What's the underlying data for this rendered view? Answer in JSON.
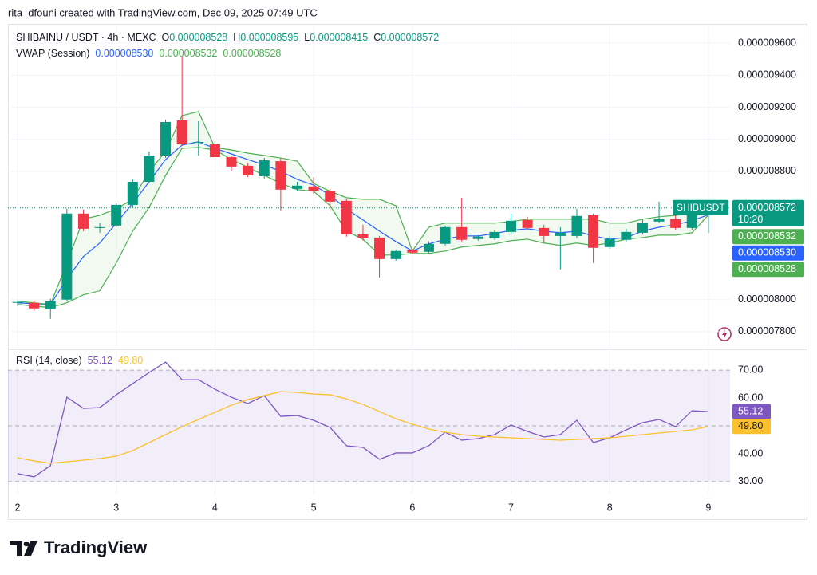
{
  "credit": "rita_dfouni created with TradingView.com, Dec 09, 2025 07:49 UTC",
  "brand": "TradingView",
  "chart_data": [
    {
      "type": "candlestick",
      "title": "SHIBAINU / USDT · 4h · MEXC",
      "ohlc_labels": [
        "O",
        "H",
        "L",
        "C"
      ],
      "symbol_tag": "SHIBUSDT",
      "countdown": "10:20",
      "up_color": "#089981",
      "down_color": "#f23645",
      "x": [
        2,
        2.1667,
        2.3333,
        2.5,
        2.6667,
        2.8333,
        3,
        3.1667,
        3.3333,
        3.5,
        3.6667,
        3.8333,
        4,
        4.1667,
        4.3333,
        4.5,
        4.6667,
        4.8333,
        5,
        5.1667,
        5.3333,
        5.5,
        5.6667,
        5.8333,
        6,
        6.1667,
        6.3333,
        6.5,
        6.6667,
        6.8333,
        7,
        7.1667,
        7.3333,
        7.5,
        7.6667,
        7.8333,
        8,
        8.1667,
        8.3333,
        8.5,
        8.6667,
        8.8333,
        9
      ],
      "xlim": [
        1.903,
        9.219
      ],
      "xticks": [
        2,
        3,
        4,
        5,
        6,
        7,
        8,
        9
      ],
      "ylim": [
        7.7e-06,
        9.72e-06
      ],
      "yticks": [
        {
          "value": 9.6e-06,
          "label": "0.000009600"
        },
        {
          "value": 9.4e-06,
          "label": "0.000009400"
        },
        {
          "value": 9.2e-06,
          "label": "0.000009200"
        },
        {
          "value": 9e-06,
          "label": "0.000009000"
        },
        {
          "value": 8.8e-06,
          "label": "0.000008800"
        },
        {
          "value": 8e-06,
          "label": "0.000008000"
        },
        {
          "value": 7.8e-06,
          "label": "0.000007800"
        }
      ],
      "grid": true,
      "open": [
        7.98e-06,
        7.98e-06,
        7.94e-06,
        8e-06,
        8.537e-06,
        8.447e-06,
        8.462e-06,
        8.591e-06,
        8.735e-06,
        8.899e-06,
        9.118e-06,
        8.979e-06,
        8.969e-06,
        8.889e-06,
        8.835e-06,
        8.77e-06,
        8.864e-06,
        8.691e-06,
        8.706e-06,
        8.676e-06,
        8.616e-06,
        8.407e-06,
        8.387e-06,
        8.253e-06,
        8.308e-06,
        8.298e-06,
        8.348e-06,
        8.452e-06,
        8.378e-06,
        8.383e-06,
        8.422e-06,
        8.497e-06,
        8.447e-06,
        8.397e-06,
        8.397e-06,
        8.527e-06,
        8.328e-06,
        8.373e-06,
        8.417e-06,
        8.487e-06,
        8.502e-06,
        8.447e-06,
        8.528e-06
      ],
      "high": [
        7.995e-06,
        7.995e-06,
        8.005e-06,
        8.567e-06,
        8.562e-06,
        8.477e-06,
        8.601e-06,
        8.75e-06,
        8.924e-06,
        9.123e-06,
        9.511e-06,
        9.113e-06,
        8.999e-06,
        8.899e-06,
        8.85e-06,
        8.884e-06,
        8.884e-06,
        8.735e-06,
        8.765e-06,
        8.691e-06,
        8.626e-06,
        8.467e-06,
        8.397e-06,
        8.313e-06,
        8.318e-06,
        8.363e-06,
        8.462e-06,
        8.636e-06,
        8.403e-06,
        8.432e-06,
        8.537e-06,
        8.517e-06,
        8.467e-06,
        8.452e-06,
        8.567e-06,
        8.537e-06,
        8.397e-06,
        8.442e-06,
        8.502e-06,
        8.611e-06,
        8.527e-06,
        8.606e-06,
        8.595e-06
      ],
      "low": [
        7.96e-06,
        7.93e-06,
        7.88e-06,
        7.99e-06,
        8.427e-06,
        8.417e-06,
        8.452e-06,
        8.576e-06,
        8.725e-06,
        8.884e-06,
        8.959e-06,
        8.899e-06,
        8.879e-06,
        8.8e-06,
        8.765e-06,
        8.755e-06,
        8.557e-06,
        8.676e-06,
        8.661e-06,
        8.552e-06,
        8.393e-06,
        8.368e-06,
        8.139e-06,
        8.243e-06,
        8.283e-06,
        8.288e-06,
        8.338e-06,
        8.363e-06,
        8.368e-06,
        8.373e-06,
        8.412e-06,
        8.437e-06,
        8.353e-06,
        8.189e-06,
        8.383e-06,
        8.229e-06,
        8.318e-06,
        8.363e-06,
        8.407e-06,
        8.477e-06,
        8.437e-06,
        8.437e-06,
        8.415e-06
      ],
      "close": [
        7.985e-06,
        7.945e-06,
        7.99e-06,
        8.537e-06,
        8.442e-06,
        8.452e-06,
        8.591e-06,
        8.735e-06,
        8.899e-06,
        9.108e-06,
        8.969e-06,
        8.984e-06,
        8.889e-06,
        8.83e-06,
        8.775e-06,
        8.869e-06,
        8.686e-06,
        8.711e-06,
        8.676e-06,
        8.611e-06,
        8.407e-06,
        8.387e-06,
        8.253e-06,
        8.303e-06,
        8.293e-06,
        8.348e-06,
        8.452e-06,
        8.373e-06,
        8.393e-06,
        8.422e-06,
        8.492e-06,
        8.447e-06,
        8.397e-06,
        8.417e-06,
        8.522e-06,
        8.323e-06,
        8.378e-06,
        8.422e-06,
        8.477e-06,
        8.502e-06,
        8.447e-06,
        8.557e-06,
        8.572e-06
      ],
      "overlay": {
        "name": "VWAP (Session)",
        "fill_color": "rgba(76,175,80,0.08)",
        "series": [
          {
            "color": "#2962ff",
            "values": [
              7.98e-06,
              7.975e-06,
              7.97e-06,
              8.129e-06,
              8.268e-06,
              8.353e-06,
              8.477e-06,
              8.601e-06,
              8.735e-06,
              8.874e-06,
              8.964e-06,
              8.984e-06,
              8.944e-06,
              8.909e-06,
              8.874e-06,
              8.84e-06,
              8.8e-06,
              8.75e-06,
              8.715e-06,
              8.651e-06,
              8.566e-06,
              8.497e-06,
              8.427e-06,
              8.362e-06,
              8.303e-06,
              8.348e-06,
              8.377e-06,
              8.397e-06,
              8.397e-06,
              8.412e-06,
              8.432e-06,
              8.442e-06,
              8.427e-06,
              8.417e-06,
              8.427e-06,
              8.397e-06,
              8.377e-06,
              8.387e-06,
              8.427e-06,
              8.452e-06,
              8.467e-06,
              8.492e-06,
              8.53e-06
            ],
            "value_labels": [
              null,
              null,
              null,
              null,
              null,
              null,
              null,
              null,
              null,
              null,
              null,
              null,
              null,
              null,
              null,
              null,
              null,
              null,
              null,
              null,
              null,
              null,
              null,
              null,
              null,
              null,
              null,
              null,
              null,
              null,
              null,
              null,
              null,
              null,
              null,
              null,
              null,
              null,
              null,
              null,
              null,
              null,
              "0.000008530"
            ]
          },
          {
            "color": "#4caf50",
            "values": [
              7.99e-06,
              7.98e-06,
              7.97e-06,
              8.228e-06,
              8.502e-06,
              8.526e-06,
              8.566e-06,
              8.626e-06,
              8.8e-06,
              8.924e-06,
              9.148e-06,
              9.173e-06,
              8.949e-06,
              8.934e-06,
              8.914e-06,
              8.899e-06,
              8.884e-06,
              8.864e-06,
              8.725e-06,
              8.676e-06,
              8.636e-06,
              8.626e-06,
              8.626e-06,
              8.586e-06,
              8.303e-06,
              8.452e-06,
              8.477e-06,
              8.477e-06,
              8.477e-06,
              8.477e-06,
              8.487e-06,
              8.502e-06,
              8.502e-06,
              8.502e-06,
              8.502e-06,
              8.502e-06,
              8.477e-06,
              8.477e-06,
              8.502e-06,
              8.517e-06,
              8.526e-06,
              8.537e-06,
              8.532e-06
            ],
            "value_labels": [
              null,
              null,
              null,
              null,
              null,
              null,
              null,
              null,
              null,
              null,
              null,
              null,
              null,
              null,
              null,
              null,
              null,
              null,
              null,
              null,
              null,
              null,
              null,
              null,
              null,
              null,
              null,
              null,
              null,
              null,
              null,
              null,
              null,
              null,
              null,
              null,
              null,
              null,
              null,
              null,
              null,
              null,
              "0.000008532"
            ]
          },
          {
            "color": "#4caf50",
            "values": [
              7.97e-06,
              7.96e-06,
              7.95e-06,
              7.98e-06,
              8.03e-06,
              8.055e-06,
              8.228e-06,
              8.427e-06,
              8.576e-06,
              8.775e-06,
              8.944e-06,
              8.949e-06,
              8.934e-06,
              8.874e-06,
              8.825e-06,
              8.775e-06,
              8.725e-06,
              8.686e-06,
              8.676e-06,
              8.586e-06,
              8.427e-06,
              8.377e-06,
              8.278e-06,
              8.278e-06,
              8.288e-06,
              8.288e-06,
              8.303e-06,
              8.328e-06,
              8.338e-06,
              8.348e-06,
              8.368e-06,
              8.377e-06,
              8.353e-06,
              8.338e-06,
              8.353e-06,
              8.338e-06,
              8.353e-06,
              8.377e-06,
              8.387e-06,
              8.402e-06,
              8.402e-06,
              8.417e-06,
              8.528e-06
            ],
            "value_labels": [
              null,
              null,
              null,
              null,
              null,
              null,
              null,
              null,
              null,
              null,
              null,
              null,
              null,
              null,
              null,
              null,
              null,
              null,
              null,
              null,
              null,
              null,
              null,
              null,
              null,
              null,
              null,
              null,
              null,
              null,
              null,
              null,
              null,
              null,
              null,
              null,
              null,
              null,
              null,
              null,
              null,
              null,
              "0.000008528"
            ]
          }
        ]
      }
    },
    {
      "type": "line",
      "title": "RSI (14, close)",
      "ylim": [
        25.4,
        76.9
      ],
      "yticks": [
        {
          "value": 70,
          "label": "70.00"
        },
        {
          "value": 60,
          "label": "60.00"
        },
        {
          "value": 40,
          "label": "40.00"
        },
        {
          "value": 30,
          "label": "30.00"
        }
      ],
      "band": [
        30,
        70
      ],
      "band_color": "rgba(126,87,194,0.1)",
      "levels": [
        70,
        50,
        30
      ],
      "series": [
        {
          "color": "#7e57c2",
          "values": [
            32.86,
            31.71,
            35.71,
            60.29,
            56.29,
            56.57,
            61.14,
            65.14,
            69.14,
            72.86,
            66.57,
            66.57,
            63.14,
            60.29,
            58.0,
            60.86,
            53.43,
            53.71,
            52.0,
            49.43,
            42.86,
            42.29,
            38.0,
            40.29,
            40.29,
            42.86,
            47.71,
            44.86,
            45.43,
            46.86,
            50.29,
            48.0,
            46.0,
            46.86,
            52.0,
            44.0,
            45.71,
            48.57,
            51.14,
            52.29,
            49.71,
            55.43,
            55.12
          ]
        },
        {
          "color": "#fbc02d",
          "values": [
            38.57,
            37.43,
            36.57,
            37.14,
            37.71,
            38.29,
            39.14,
            41.14,
            44.0,
            46.86,
            49.71,
            52.29,
            54.86,
            57.43,
            59.43,
            60.86,
            62.29,
            62.0,
            61.43,
            61.14,
            59.71,
            57.71,
            55.14,
            52.57,
            50.57,
            48.86,
            47.71,
            46.86,
            46.29,
            46.0,
            45.71,
            45.43,
            45.14,
            44.86,
            45.14,
            45.43,
            45.71,
            46.29,
            46.86,
            47.43,
            48.0,
            48.57,
            49.8
          ],
          "value_labels": [
            null,
            null,
            null,
            null,
            null,
            null,
            null,
            null,
            null,
            null,
            null,
            null,
            null,
            null,
            null,
            null,
            null,
            null,
            null,
            null,
            null,
            null,
            null,
            null,
            null,
            null,
            null,
            null,
            null,
            null,
            null,
            null,
            null,
            null,
            null,
            null,
            null,
            null,
            null,
            null,
            null,
            null,
            "49.80"
          ]
        }
      ]
    }
  ]
}
